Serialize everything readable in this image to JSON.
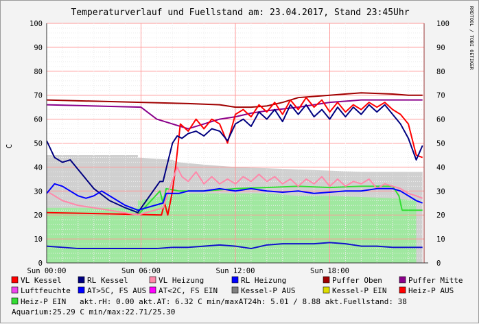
{
  "chart_data": {
    "type": "line",
    "title": "Temperaturverlauf und Fuellstand am: 23.04.2017, Stand 23:45Uhr",
    "ylabel": "C",
    "watermark": "RRDTOOL / TOBI OETIKER",
    "ylim": [
      0,
      100
    ],
    "xlim": [
      0,
      24
    ],
    "y_ticks": [
      "0",
      "10",
      "20",
      "30",
      "40",
      "50",
      "60",
      "70",
      "80",
      "90",
      "100"
    ],
    "x_ticks": [
      {
        "at": 0,
        "label": "Sun 00:00"
      },
      {
        "at": 6,
        "label": "Sun 06:00"
      },
      {
        "at": 12,
        "label": "Sun 12:00"
      },
      {
        "at": 18,
        "label": "Sun 18:00"
      }
    ],
    "grid": true,
    "colors": {
      "vl_kessel": "#ff0000",
      "rl_kessel": "#000080",
      "vl_heizung": "#ff88aa",
      "rl_heizung": "#0000ff",
      "puffer_oben": "#a00000",
      "puffer_mitte": "#8a008a",
      "luftfeuchte": "#d0d0d0",
      "heiz_p_fill": "#a0e8a0",
      "heiz_p_line": "#33dd33",
      "at": "#1010cc"
    },
    "series": [
      {
        "name": "Luftfeuchte",
        "style": "area",
        "color": "#d0d0d0",
        "x": [
          0,
          5.8,
          5.8,
          8.0,
          8.4,
          10,
          12,
          14,
          16,
          18,
          20,
          22,
          23.9
        ],
        "y": [
          45,
          45,
          44,
          43,
          42,
          41,
          40,
          39.5,
          39,
          38.5,
          38,
          38,
          38
        ]
      },
      {
        "name": "Heiz-P EIN",
        "style": "area",
        "color": "#a0e8a0",
        "x": [
          0,
          5.8,
          5.8,
          7.5,
          8.4,
          10,
          12,
          14,
          16,
          18,
          20,
          22,
          23.5,
          23.5,
          23.9
        ],
        "y": [
          23,
          23,
          26,
          28,
          29,
          29,
          29,
          29,
          28,
          28,
          27.5,
          27,
          26,
          0,
          0
        ]
      },
      {
        "name": "Heiz-P EIN",
        "style": "line",
        "color": "#33dd33",
        "x": [
          5.8,
          7.2,
          7.4,
          7.6,
          8.4,
          10,
          12,
          14,
          16,
          18,
          20,
          22,
          22.4,
          22.6,
          23.9
        ],
        "y": [
          20,
          30,
          25,
          31,
          30,
          30,
          31,
          31.5,
          32,
          31.5,
          32,
          32,
          28,
          22,
          22
        ]
      },
      {
        "name": "Puffer Oben",
        "style": "line",
        "color": "#a00000",
        "x": [
          0,
          3,
          6,
          9,
          11,
          12,
          13,
          14,
          15,
          16,
          18,
          20,
          22,
          23,
          23.9
        ],
        "y": [
          68,
          67.5,
          67,
          66.5,
          66,
          65,
          65,
          65.5,
          67,
          69,
          70,
          71,
          70.5,
          70,
          70
        ]
      },
      {
        "name": "Puffer Mitte",
        "style": "line",
        "color": "#8a008a",
        "x": [
          0,
          3,
          6,
          7,
          8,
          9,
          10,
          11,
          12,
          13,
          14,
          16,
          18,
          20,
          22,
          23,
          23.9
        ],
        "y": [
          66,
          65.5,
          65,
          60,
          58,
          56,
          58,
          60,
          61,
          62.5,
          63.5,
          65,
          67,
          68,
          68,
          68,
          68
        ]
      },
      {
        "name": "VL Kessel",
        "style": "line",
        "color": "#ff0000",
        "x": [
          0,
          4,
          7.3,
          7.5,
          7.7,
          8,
          8.2,
          8.5,
          9,
          9.5,
          10,
          10.5,
          11,
          11.5,
          12,
          12.5,
          13,
          13.5,
          14,
          14.5,
          15,
          15.5,
          16,
          16.5,
          17,
          17.5,
          18,
          18.5,
          19,
          19.5,
          20,
          20.5,
          21,
          21.5,
          22,
          22.5,
          23,
          23.5,
          23.9
        ],
        "y": [
          21,
          20.5,
          20,
          25,
          20,
          30,
          40,
          58,
          55,
          60,
          56,
          60,
          58,
          50,
          62,
          64,
          61,
          66,
          63,
          67,
          62,
          68,
          64,
          69,
          65,
          68,
          63,
          67,
          63,
          66,
          64,
          67,
          65,
          67,
          64,
          62,
          58,
          45,
          44
        ]
      },
      {
        "name": "RL Kessel",
        "style": "line",
        "color": "#000080",
        "x": [
          0,
          0.5,
          1,
          1.5,
          2,
          3,
          4,
          5,
          5.8,
          7.2,
          7.4,
          8,
          8.3,
          8.6,
          9,
          9.5,
          10,
          10.5,
          11,
          11.5,
          12,
          12.5,
          13,
          13.5,
          14,
          14.5,
          15,
          15.5,
          16,
          16.5,
          17,
          17.5,
          18,
          18.5,
          19,
          19.5,
          20,
          20.5,
          21,
          21.5,
          22,
          22.5,
          23,
          23.5,
          23.9
        ],
        "y": [
          51,
          44,
          42,
          43,
          39,
          31,
          26,
          23,
          21,
          34,
          34,
          50,
          53,
          52,
          54,
          55,
          53,
          56,
          55,
          51,
          58,
          60,
          57,
          63,
          60,
          64,
          59,
          66,
          62,
          66,
          61,
          64,
          60,
          65,
          61,
          65,
          62,
          66,
          63,
          66,
          62,
          58,
          52,
          43,
          49
        ]
      },
      {
        "name": "VL Heizung",
        "style": "line",
        "color": "#ff88aa",
        "x": [
          0,
          1,
          2,
          3,
          4,
          5.8,
          7.4,
          8.3,
          8.6,
          9,
          9.5,
          10,
          10.5,
          11,
          11.5,
          12,
          12.5,
          13,
          13.5,
          14,
          14.5,
          15,
          15.5,
          16,
          16.5,
          17,
          17.5,
          18,
          18.5,
          19,
          19.5,
          20,
          20.5,
          21,
          21.5,
          22,
          22.5,
          23,
          23.5,
          23.9
        ],
        "y": [
          30,
          26,
          24,
          23,
          22,
          20,
          23,
          40,
          36,
          34,
          38,
          33,
          36,
          33,
          35,
          33,
          36,
          34,
          37,
          34,
          36,
          33,
          35,
          32,
          35,
          33,
          36,
          32,
          35,
          32,
          34,
          33,
          35,
          31,
          33,
          32,
          31,
          29,
          28,
          27
        ]
      },
      {
        "name": "RL Heizung",
        "style": "line",
        "color": "#0000ff",
        "x": [
          0,
          0.5,
          1,
          1.5,
          2,
          2.5,
          3,
          3.5,
          4,
          5,
          5.8,
          7.4,
          7.6,
          8.4,
          9,
          10,
          11,
          12,
          13,
          14,
          15,
          16,
          17,
          18,
          19,
          20,
          21,
          22,
          22.5,
          23,
          23.5,
          23.9
        ],
        "y": [
          29,
          33,
          32,
          30,
          28,
          27,
          28,
          30,
          28,
          24,
          22,
          25,
          29,
          29,
          30,
          30,
          31,
          30,
          31,
          30,
          29.5,
          30,
          29,
          29.5,
          30,
          30,
          31,
          31,
          30,
          28,
          26,
          25
        ]
      },
      {
        "name": "AT",
        "style": "line",
        "color": "#1010cc",
        "x": [
          0,
          1,
          2,
          3,
          4,
          5,
          6,
          7,
          8,
          9,
          10,
          11,
          12,
          13,
          14,
          15,
          16,
          17,
          18,
          19,
          20,
          21,
          22,
          23,
          23.9
        ],
        "y": [
          7,
          6.5,
          6,
          6,
          6,
          6,
          6,
          6,
          6.5,
          6.5,
          7,
          7.5,
          7,
          6,
          7.5,
          8,
          8,
          8,
          8.5,
          8,
          7,
          7,
          6.5,
          6.5,
          6.5
        ]
      }
    ]
  },
  "legend": [
    {
      "label": "VL Kessel",
      "color": "#ff0000"
    },
    {
      "label": "RL Kessel",
      "color": "#000080"
    },
    {
      "label": "VL Heizung",
      "color": "#ff88aa"
    },
    {
      "label": "RL Heizung",
      "color": "#0000ff"
    },
    {
      "label": "Puffer Oben",
      "color": "#a00000"
    },
    {
      "label": "Puffer Mitte",
      "color": "#8a008a"
    },
    {
      "label": "Luftfeuchte",
      "color": "#ee44ee"
    },
    {
      "label": "AT>5C, FS AUS",
      "color": "#0000ff"
    },
    {
      "label": "AT<2C, FS EIN",
      "color": "#ff00ff"
    },
    {
      "label": "Kessel-P AUS",
      "color": "#808080"
    },
    {
      "label": "Kessel-P EIN",
      "color": "#dddd00"
    },
    {
      "label": "Heiz-P AUS",
      "color": "#ff0000"
    },
    {
      "label": "Heiz-P EIN",
      "color": "#33dd33"
    }
  ],
  "status": {
    "line3_rest": "  akt.rH: 0.00   akt.AT: 6.32 C   min/maxAT24h: 5.01 / 8.88   akt.Fuellstand:   38",
    "line4": "Aquarium:25.29 C  min/max:22.71/25.30"
  }
}
